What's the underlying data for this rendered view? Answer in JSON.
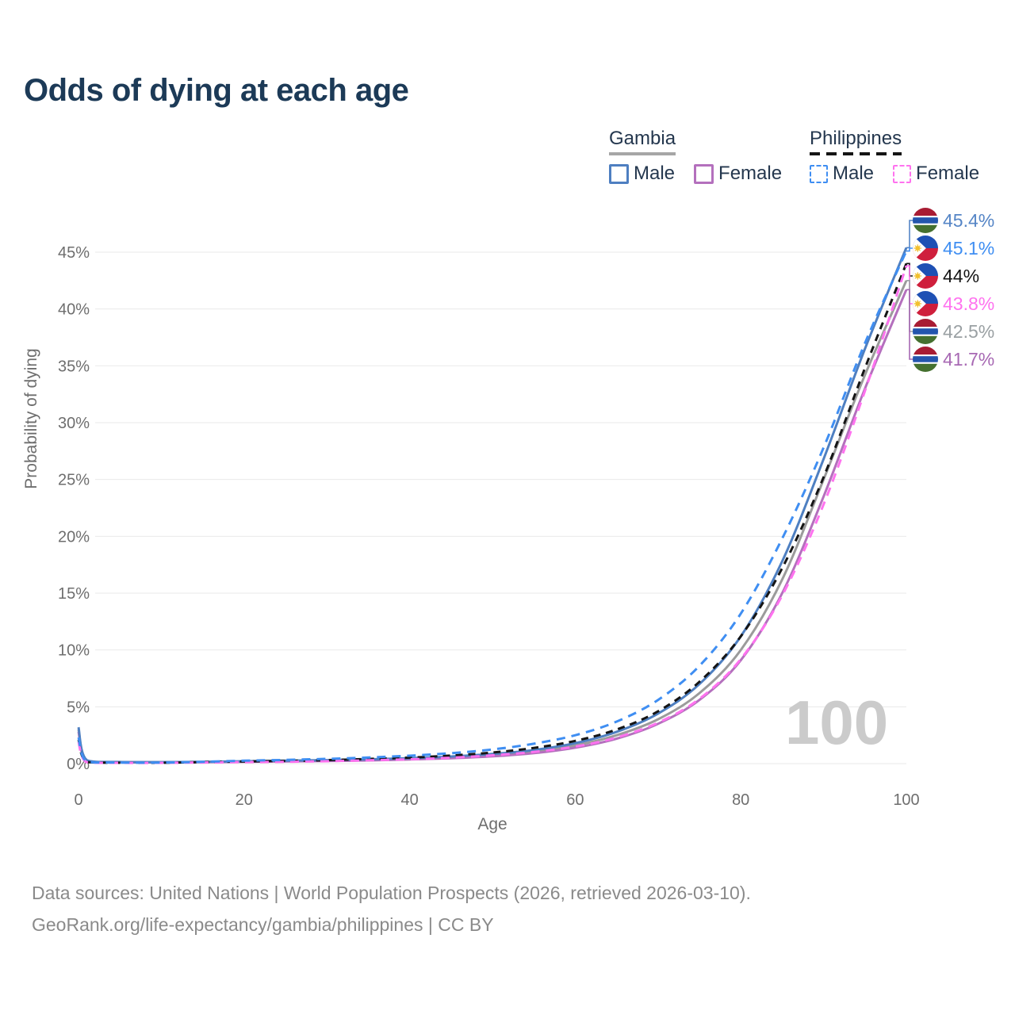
{
  "title": "Odds of dying at each age",
  "watermark": "100",
  "legend": {
    "groups": [
      {
        "country": "Gambia",
        "line_color": "#a6a6a6",
        "line_style": "solid",
        "items": [
          {
            "label": "Male",
            "color": "#4e7fc1",
            "style": "solid"
          },
          {
            "label": "Female",
            "color": "#b470bd",
            "style": "solid"
          }
        ]
      },
      {
        "country": "Philippines",
        "line_color": "#151515",
        "line_style": "dashed",
        "items": [
          {
            "label": "Male",
            "color": "#3f8ef2",
            "style": "dashed"
          },
          {
            "label": "Female",
            "color": "#ff72ef",
            "style": "dashed"
          }
        ]
      }
    ]
  },
  "chart_data": {
    "type": "line",
    "title": "Odds of dying at each age",
    "xlabel": "Age",
    "ylabel": "Probability of dying",
    "xlim": [
      0,
      100
    ],
    "ylim_percent": [
      0,
      45
    ],
    "grid": "horizontal",
    "xticks": [
      0,
      20,
      40,
      60,
      80,
      100
    ],
    "ytick_labels": [
      "0%",
      "5%",
      "10%",
      "15%",
      "20%",
      "25%",
      "30%",
      "35%",
      "40%",
      "45%"
    ],
    "x_ages": [
      0,
      1,
      5,
      10,
      15,
      20,
      25,
      30,
      35,
      40,
      45,
      50,
      55,
      60,
      65,
      70,
      75,
      80,
      85,
      90,
      95,
      100
    ],
    "series": [
      {
        "name": "gambia_total",
        "country": "Gambia",
        "sex": "both",
        "color": "#9b9b9b",
        "dash": "none",
        "end_label": "42.5%",
        "values_percent": [
          3.0,
          0.27,
          0.14,
          0.12,
          0.14,
          0.18,
          0.22,
          0.27,
          0.33,
          0.42,
          0.55,
          0.74,
          1.05,
          1.6,
          2.5,
          3.9,
          6.2,
          10.0,
          16.2,
          25.0,
          34.2,
          42.5
        ]
      },
      {
        "name": "gambia_female",
        "country": "Gambia",
        "sex": "female",
        "color": "#b470bd",
        "dash": "none",
        "end_label": "41.7%",
        "values_percent": [
          2.8,
          0.24,
          0.13,
          0.11,
          0.13,
          0.16,
          0.19,
          0.23,
          0.28,
          0.36,
          0.47,
          0.64,
          0.92,
          1.4,
          2.2,
          3.5,
          5.6,
          9.1,
          15.0,
          23.5,
          33.0,
          41.7
        ]
      },
      {
        "name": "gambia_male",
        "country": "Gambia",
        "sex": "male",
        "color": "#4e7fc1",
        "dash": "none",
        "end_label": "45.4%",
        "values_percent": [
          3.2,
          0.3,
          0.15,
          0.13,
          0.16,
          0.21,
          0.26,
          0.31,
          0.38,
          0.48,
          0.63,
          0.85,
          1.2,
          1.8,
          2.8,
          4.4,
          7.0,
          11.2,
          17.8,
          26.8,
          36.5,
          45.4
        ]
      },
      {
        "name": "philippines_total",
        "country": "Philippines",
        "sex": "both",
        "color": "#151515",
        "dash": "9 7",
        "end_label": "44%",
        "values_percent": [
          2.1,
          0.15,
          0.08,
          0.08,
          0.13,
          0.19,
          0.24,
          0.31,
          0.41,
          0.53,
          0.71,
          0.98,
          1.38,
          2.0,
          3.0,
          4.6,
          7.2,
          11.2,
          17.2,
          25.2,
          34.8,
          44.0
        ]
      },
      {
        "name": "philippines_female",
        "country": "Philippines",
        "sex": "female",
        "color": "#ff72ef",
        "dash": "11 8",
        "end_label": "43.8%",
        "values_percent": [
          1.9,
          0.12,
          0.07,
          0.07,
          0.1,
          0.13,
          0.16,
          0.21,
          0.29,
          0.38,
          0.52,
          0.73,
          1.03,
          1.5,
          2.3,
          3.6,
          5.7,
          9.2,
          14.8,
          22.8,
          32.8,
          43.8
        ]
      },
      {
        "name": "philippines_male",
        "country": "Philippines",
        "sex": "male",
        "color": "#3f8ef2",
        "dash": "11 8",
        "end_label": "45.1%",
        "values_percent": [
          2.3,
          0.18,
          0.09,
          0.09,
          0.16,
          0.26,
          0.33,
          0.42,
          0.54,
          0.7,
          0.92,
          1.25,
          1.75,
          2.5,
          3.7,
          5.6,
          8.6,
          13.2,
          19.8,
          27.8,
          37.0,
          45.1
        ]
      }
    ]
  },
  "end_labels": [
    {
      "value": "45.4%",
      "color": "#5585c6",
      "flag": "gambia",
      "series": "gambia_male"
    },
    {
      "value": "45.1%",
      "color": "#3f8ef2",
      "flag": "philippines",
      "series": "philippines_male"
    },
    {
      "value": "44%",
      "color": "#151515",
      "flag": "philippines",
      "series": "philippines_total"
    },
    {
      "value": "43.8%",
      "color": "#ff72ef",
      "flag": "philippines",
      "series": "philippines_female"
    },
    {
      "value": "42.5%",
      "color": "#9aa0a3",
      "flag": "gambia",
      "series": "gambia_total"
    },
    {
      "value": "41.7%",
      "color": "#a768b3",
      "flag": "gambia",
      "series": "gambia_female"
    }
  ],
  "footer": {
    "line1": "Data sources: United Nations | World Population Prospects (2026, retrieved 2026-03-10).",
    "line2": "GeoRank.org/life-expectancy/gambia/philippines | CC BY"
  }
}
